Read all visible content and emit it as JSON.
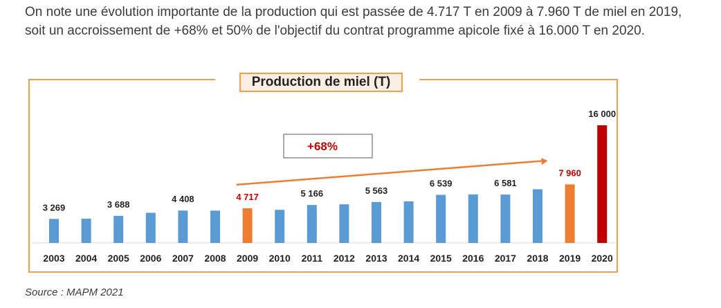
{
  "intro_text": "On note une évolution importante de la production qui est passée de 4.717 T en 2009 à 7.960 T de miel en 2019, soit un accroissement de +68% et 50% de l'objectif du contrat programme apicole fixé à 16.000 T en 2020.",
  "source": "Source : MAPM 2021",
  "chart_data": {
    "type": "bar",
    "title": "Production de miel (T)",
    "categories": [
      "2003",
      "2004",
      "2005",
      "2006",
      "2007",
      "2008",
      "2009",
      "2010",
      "2011",
      "2012",
      "2013",
      "2014",
      "2015",
      "2016",
      "2017",
      "2018",
      "2019",
      "2020"
    ],
    "values": [
      3269,
      3300,
      3688,
      4100,
      4408,
      4400,
      4717,
      4500,
      5166,
      5250,
      5563,
      5650,
      6539,
      6600,
      6581,
      7300,
      7960,
      16000
    ],
    "data_labels": [
      "3 269",
      "",
      "3 688",
      "",
      "4 408",
      "",
      "4 717",
      "",
      "5 166",
      "",
      "5 563",
      "",
      "6 539",
      "",
      "6 581",
      "",
      "7 960",
      "16 000"
    ],
    "bar_colors": [
      "#5b9bd5",
      "#5b9bd5",
      "#5b9bd5",
      "#5b9bd5",
      "#5b9bd5",
      "#5b9bd5",
      "#ed7d31",
      "#5b9bd5",
      "#5b9bd5",
      "#5b9bd5",
      "#5b9bd5",
      "#5b9bd5",
      "#5b9bd5",
      "#5b9bd5",
      "#5b9bd5",
      "#5b9bd5",
      "#ed7d31",
      "#c00000"
    ],
    "label_colors": [
      "#222222",
      "#222222",
      "#222222",
      "#222222",
      "#222222",
      "#222222",
      "#c00000",
      "#222222",
      "#222222",
      "#222222",
      "#222222",
      "#222222",
      "#222222",
      "#222222",
      "#222222",
      "#222222",
      "#c00000",
      "#222222"
    ],
    "annotation": {
      "text": "+68%",
      "from": "2009",
      "to": "2019",
      "color": "#c00000",
      "arrow_color": "#ed7d31"
    },
    "ylim": [
      0,
      16000
    ],
    "grid": false,
    "legend": "none"
  }
}
